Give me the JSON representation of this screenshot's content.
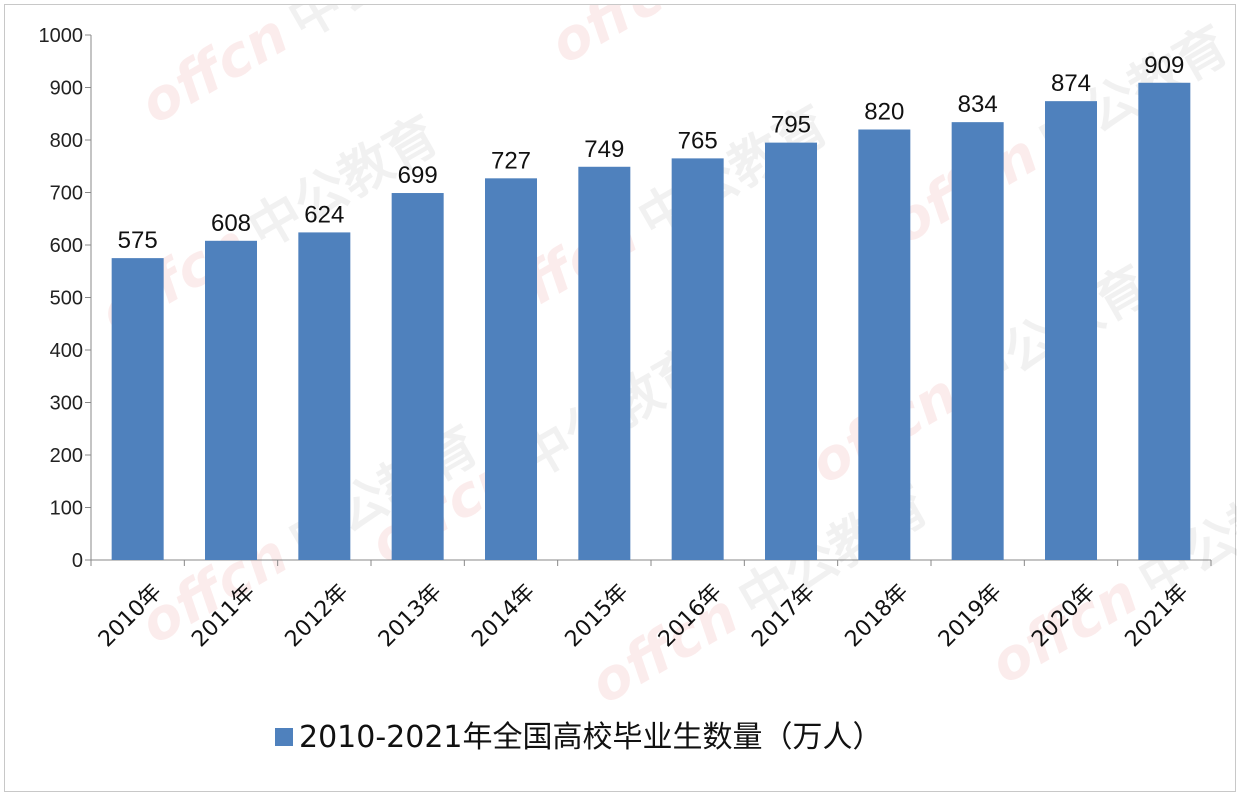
{
  "chart_data": {
    "type": "bar",
    "categories": [
      "2010年",
      "2011年",
      "2012年",
      "2013年",
      "2014年",
      "2015年",
      "2016年",
      "2017年",
      "2018年",
      "2019年",
      "2020年",
      "2021年"
    ],
    "series": [
      {
        "name": "2010-2021年全国高校毕业生数量（万人）",
        "values": [
          575,
          608,
          624,
          699,
          727,
          749,
          765,
          795,
          820,
          834,
          874,
          909
        ],
        "color": "#4f81bd"
      }
    ],
    "ylim": [
      0,
      1000
    ],
    "yticks": [
      0,
      100,
      200,
      300,
      400,
      500,
      600,
      700,
      800,
      900,
      1000
    ],
    "grid": false,
    "legend_position": "bottom",
    "data_labels": true
  },
  "watermark": {
    "brand_text": "offcn",
    "cn_text": "中公教育"
  }
}
